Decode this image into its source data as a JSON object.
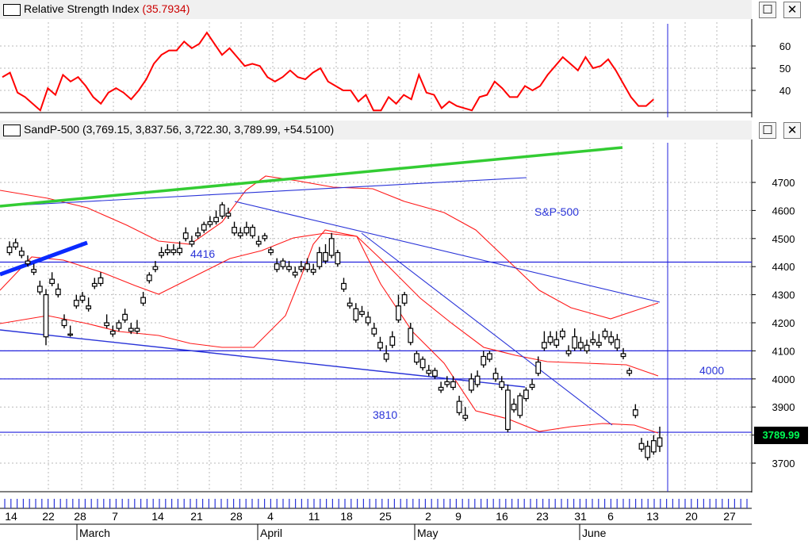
{
  "rsi_pane": {
    "title": "Relative Strength Index",
    "value_text": "(35.7934)",
    "restore_icon": "☐",
    "close_icon": "✕"
  },
  "price_pane": {
    "title": "SandP-500 (3,769.15, 3,837.56, 3,722.30, 3,789.99, +54.5100)",
    "restore_icon": "☐",
    "close_icon": "✕",
    "last_price_label": "3789.99"
  },
  "chart_data": [
    {
      "type": "line",
      "y_ticks": [
        40,
        50,
        60
      ],
      "ylim": [
        30,
        70
      ],
      "grid": true,
      "color": "#ff0000",
      "values": [
        46,
        48,
        39,
        37,
        34,
        31,
        41,
        38,
        47,
        44,
        46,
        42,
        37,
        34,
        39,
        41,
        39,
        36,
        40,
        45,
        52,
        56,
        58,
        58,
        62,
        59,
        61,
        66,
        61,
        56,
        59,
        55,
        51,
        52,
        51,
        46,
        44,
        46,
        49,
        46,
        45,
        48,
        50,
        44,
        42,
        40,
        40,
        35,
        38,
        31,
        31,
        37,
        34,
        38,
        36,
        47,
        39,
        38,
        32,
        35,
        33,
        32,
        31,
        37,
        38,
        44,
        41,
        37,
        37,
        42,
        40,
        42,
        47,
        51,
        55,
        52,
        49,
        55,
        50,
        51,
        54,
        49,
        43,
        37,
        33,
        33,
        36
      ]
    },
    {
      "type": "candlestick",
      "name": "S&P-500",
      "y_ticks": [
        3700,
        3800,
        3900,
        4000,
        4100,
        4200,
        4300,
        4400,
        4500,
        4600,
        4700
      ],
      "ylim": [
        3630,
        4800
      ],
      "grid": true,
      "date_labels": [
        "14",
        "22",
        "28",
        "7",
        "14",
        "21",
        "28",
        "4",
        "11",
        "18",
        "25",
        "2",
        "9",
        "16",
        "23",
        "31",
        "6",
        "13",
        "20",
        "27"
      ],
      "month_labels": [
        "March",
        "April",
        "May",
        "June"
      ],
      "annotations": [
        "S&P-500",
        "4416",
        "4000",
        "3810"
      ],
      "horizontal_levels": [
        4416,
        4100,
        4000,
        3810
      ],
      "close": [
        4470,
        4485,
        4455,
        4420,
        4390,
        4330,
        4300,
        4355,
        4320,
        4210,
        4160,
        4280,
        4295,
        4260,
        4340,
        4360,
        4200,
        4170,
        4200,
        4230,
        4180,
        4180,
        4290,
        4370,
        4400,
        4450,
        4460,
        4460,
        4465,
        4520,
        4490,
        4520,
        4550,
        4560,
        4575,
        4620,
        4590,
        4540,
        4520,
        4540,
        4540,
        4490,
        4510,
        4460,
        4410,
        4420,
        4400,
        4380,
        4400,
        4410,
        4390,
        4450,
        4450,
        4500,
        4450,
        4340,
        4270,
        4250,
        4240,
        4220,
        4180,
        4130,
        4090,
        4150,
        4260,
        4300,
        4180,
        4090,
        4070,
        4030,
        4030,
        3970,
        3990,
        3990,
        3920,
        3870,
        4000,
        4010,
        4080,
        4090,
        4020,
        3990,
        3960,
        3910,
        3940,
        3960,
        3980,
        4060,
        4130,
        4150,
        4140,
        4170,
        4100,
        4150,
        4130,
        4120,
        4140,
        4130,
        4170,
        4150,
        4140,
        4090,
        4030,
        3890,
        3770,
        3760,
        3780,
        3790
      ],
      "high": [
        4490,
        4500,
        4470,
        4440,
        4410,
        4350,
        4320,
        4380,
        4340,
        4230,
        4190,
        4300,
        4310,
        4290,
        4360,
        4380,
        4230,
        4190,
        4210,
        4250,
        4200,
        4210,
        4310,
        4380,
        4420,
        4470,
        4480,
        4480,
        4490,
        4540,
        4510,
        4540,
        4560,
        4580,
        4600,
        4630,
        4610,
        4560,
        4540,
        4560,
        4550,
        4510,
        4520,
        4470,
        4430,
        4430,
        4420,
        4400,
        4420,
        4430,
        4410,
        4470,
        4480,
        4520,
        4460,
        4360,
        4290,
        4270,
        4260,
        4240,
        4200,
        4150,
        4120,
        4170,
        4300,
        4310,
        4200,
        4100,
        4080,
        4050,
        4040,
        3990,
        4010,
        4010,
        3940,
        3900,
        4020,
        4030,
        4100,
        4100,
        4040,
        4010,
        3980,
        3930,
        3950,
        3970,
        4000,
        4080,
        4170,
        4170,
        4170,
        4180,
        4120,
        4180,
        4150,
        4140,
        4170,
        4160,
        4180,
        4170,
        4160,
        4110,
        4040,
        3910,
        3790,
        3780,
        3800,
        3830
      ],
      "low": [
        4440,
        4460,
        4430,
        4400,
        4370,
        4300,
        4120,
        4330,
        4290,
        4180,
        4150,
        4250,
        4270,
        4240,
        4320,
        4330,
        4180,
        4150,
        4170,
        4200,
        4160,
        4160,
        4260,
        4340,
        4380,
        4430,
        4440,
        4440,
        4440,
        4490,
        4470,
        4500,
        4520,
        4540,
        4550,
        4570,
        4570,
        4510,
        4500,
        4510,
        4500,
        4470,
        4490,
        4440,
        4380,
        4390,
        4380,
        4360,
        4380,
        4380,
        4370,
        4390,
        4410,
        4430,
        4400,
        4310,
        4250,
        4200,
        4220,
        4190,
        4150,
        4100,
        4060,
        4110,
        4200,
        4260,
        4120,
        4050,
        4030,
        4010,
        4000,
        3950,
        3970,
        3960,
        3870,
        3850,
        3950,
        3970,
        4040,
        4060,
        3990,
        3960,
        3810,
        3880,
        3860,
        3920,
        3960,
        4010,
        4100,
        4120,
        4110,
        4140,
        4080,
        4100,
        4100,
        4090,
        4120,
        4110,
        4140,
        4120,
        4100,
        4070,
        4010,
        3860,
        3740,
        3710,
        3730,
        3740
      ],
      "open": [
        4450,
        4470,
        4440,
        4410,
        4380,
        4310,
        4150,
        4340,
        4300,
        4190,
        4160,
        4260,
        4280,
        4250,
        4330,
        4340,
        4190,
        4160,
        4180,
        4210,
        4170,
        4170,
        4270,
        4350,
        4390,
        4440,
        4450,
        4450,
        4450,
        4500,
        4480,
        4510,
        4530,
        4550,
        4560,
        4580,
        4580,
        4520,
        4510,
        4520,
        4510,
        4480,
        4500,
        4450,
        4390,
        4400,
        4390,
        4370,
        4390,
        4390,
        4380,
        4400,
        4420,
        4440,
        4410,
        4320,
        4260,
        4210,
        4230,
        4200,
        4160,
        4110,
        4070,
        4120,
        4210,
        4270,
        4130,
        4060,
        4040,
        4020,
        4010,
        3960,
        3980,
        3970,
        3880,
        3860,
        3960,
        3980,
        4050,
        4070,
        4000,
        3970,
        3820,
        3890,
        3870,
        3930,
        3970,
        4020,
        4110,
        4130,
        4120,
        4150,
        4090,
        4110,
        4110,
        4100,
        4130,
        4120,
        4150,
        4130,
        4110,
        4080,
        4020,
        3870,
        3750,
        3720,
        3740,
        3760
      ]
    }
  ]
}
